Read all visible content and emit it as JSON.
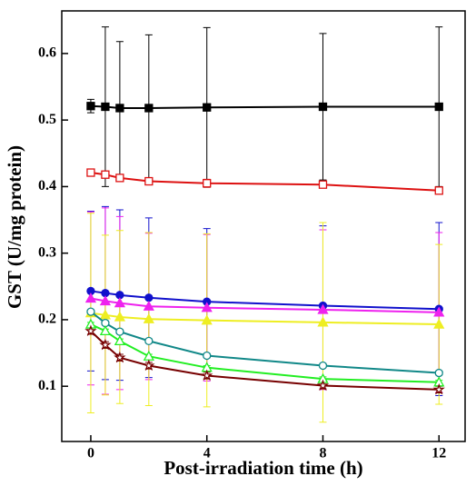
{
  "chart_data": {
    "type": "line",
    "x_label": "Post-irradiation time (h)",
    "y_label": "GST (U/mg protein)",
    "x": [
      0,
      0.5,
      1,
      2,
      4,
      8,
      12
    ],
    "xlim": [
      -1,
      12.9
    ],
    "xticks": [
      0,
      4,
      8,
      12
    ],
    "ylim": [
      0.017,
      0.664
    ],
    "yticks": [
      0.1,
      0.2,
      0.3,
      0.4,
      0.5,
      0.6
    ],
    "series": [
      {
        "color": "#000000",
        "marker": "square",
        "open": false,
        "values": [
          0.521,
          0.52,
          0.518,
          0.518,
          0.519,
          0.52,
          0.52
        ],
        "errors": [
          0.01,
          0.12,
          0.1,
          0.11,
          0.12,
          0.11,
          0.12
        ]
      },
      {
        "color": "#dd1111",
        "marker": "square",
        "open": true,
        "values": [
          0.421,
          0.418,
          0.413,
          0.408,
          0.405,
          0.403,
          0.394
        ],
        "errors": [
          0.003,
          0.003,
          0.003,
          0.003,
          0.006,
          0.005,
          0.003
        ]
      },
      {
        "color": "#1111cc",
        "marker": "circle",
        "open": false,
        "values": [
          0.243,
          0.24,
          0.237,
          0.233,
          0.227,
          0.221,
          0.216
        ],
        "errors": [
          0.12,
          0.13,
          0.128,
          0.12,
          0.11,
          0.12,
          0.13
        ]
      },
      {
        "color": "#ee22ee",
        "marker": "triangle",
        "open": false,
        "values": [
          0.232,
          0.228,
          0.225,
          0.22,
          0.218,
          0.215,
          0.211
        ],
        "errors": [
          0.13,
          0.14,
          0.13,
          0.11,
          0.11,
          0.12,
          0.12
        ]
      },
      {
        "color": "#eeee22",
        "marker": "triangle",
        "open": false,
        "values": [
          0.21,
          0.207,
          0.204,
          0.201,
          0.199,
          0.196,
          0.193
        ],
        "errors": [
          0.15,
          0.12,
          0.13,
          0.13,
          0.13,
          0.15,
          0.12
        ]
      },
      {
        "color": "#118888",
        "marker": "circle",
        "open": true,
        "values": [
          0.212,
          0.195,
          0.182,
          0.168,
          0.146,
          0.131,
          0.12
        ],
        "errors": [
          0.003,
          0.003,
          0.003,
          0.003,
          0.003,
          0.003,
          0.003
        ]
      },
      {
        "color": "#22ee22",
        "marker": "triangle",
        "open": true,
        "values": [
          0.193,
          0.183,
          0.168,
          0.145,
          0.128,
          0.111,
          0.106
        ],
        "errors": [
          0.003,
          0.003,
          0.003,
          0.003,
          0.003,
          0.003,
          0.003
        ]
      },
      {
        "color": "#770000",
        "marker": "star",
        "open": true,
        "values": [
          0.183,
          0.162,
          0.143,
          0.131,
          0.116,
          0.101,
          0.095
        ],
        "errors": [
          0.005,
          0.005,
          0.005,
          0.005,
          0.005,
          0.005,
          0.005
        ]
      }
    ]
  }
}
